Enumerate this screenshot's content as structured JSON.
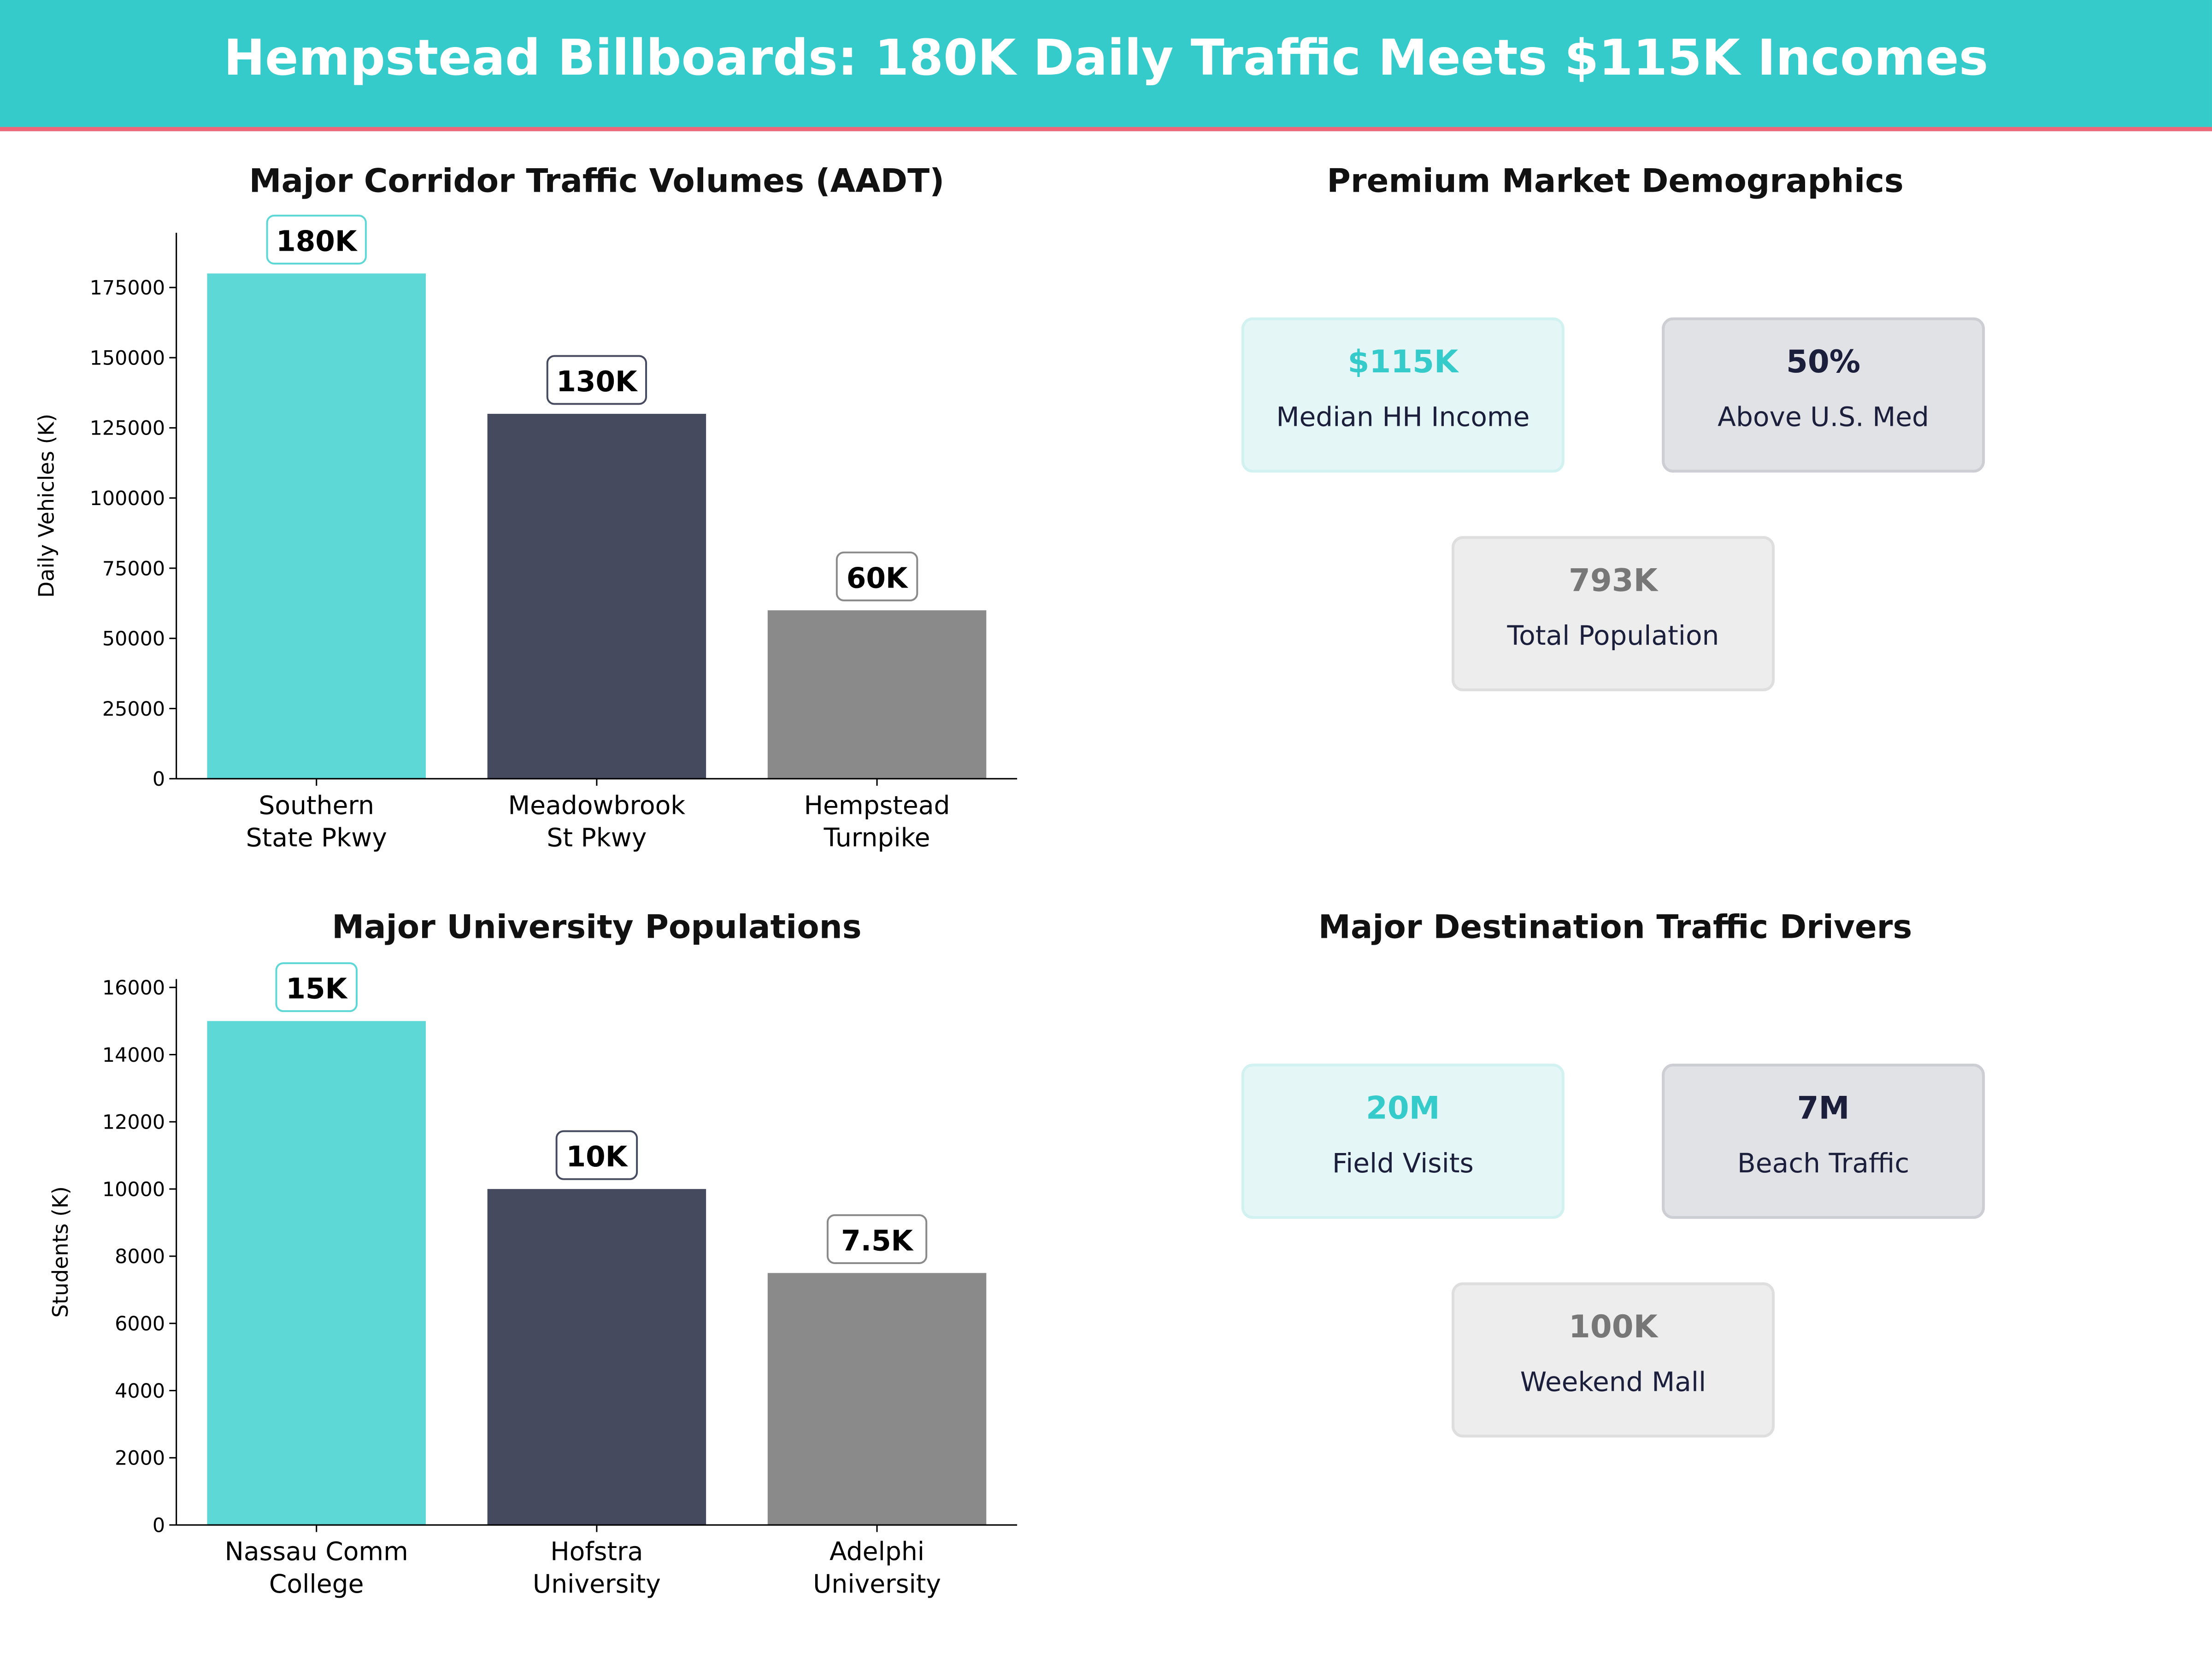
{
  "header": {
    "title": "Hempstead Billboards: 180K Daily Traffic Meets $115K Incomes"
  },
  "colors": {
    "teal": "#36CBCB",
    "bar_teal": "#5DD8D6",
    "navy": "#464A5F",
    "gray": "#8A8A8A",
    "accent_line": "#F06878"
  },
  "chart_data": [
    {
      "type": "bar",
      "title": "Major Corridor Traffic Volumes (AADT)",
      "xlabel": "",
      "ylabel": "Daily Vehicles (K)",
      "categories": [
        "Southern\nState Pkwy",
        "Meadowbrook\nSt Pkwy",
        "Hempstead\nTurnpike"
      ],
      "values": [
        180000,
        130000,
        60000
      ],
      "data_labels": [
        "180K",
        "130K",
        "60K"
      ],
      "bar_colors": [
        "#5DD8D6",
        "#464A5F",
        "#8A8A8A"
      ],
      "ylim": [
        0,
        194500
      ],
      "yticks": [
        0,
        25000,
        50000,
        75000,
        100000,
        125000,
        150000,
        175000
      ],
      "grid": false
    },
    {
      "type": "bar",
      "title": "Major University Populations",
      "xlabel": "",
      "ylabel": "Students (K)",
      "categories": [
        "Nassau Comm\nCollege",
        "Hofstra\nUniversity",
        "Adelphi\nUniversity"
      ],
      "values": [
        15000,
        10000,
        7500
      ],
      "data_labels": [
        "15K",
        "10K",
        "7.5K"
      ],
      "bar_colors": [
        "#5DD8D6",
        "#464A5F",
        "#8A8A8A"
      ],
      "ylim": [
        0,
        16250
      ],
      "yticks": [
        0,
        2000,
        4000,
        6000,
        8000,
        10000,
        12000,
        14000,
        16000
      ],
      "grid": false
    }
  ],
  "demographics": {
    "title": "Premium Market Demographics",
    "cards": [
      {
        "value": "$115K",
        "label": "Median HH Income"
      },
      {
        "value": "50%",
        "label": "Above U.S. Med"
      },
      {
        "value": "793K",
        "label": "Total Population"
      }
    ]
  },
  "destinations": {
    "title": "Major Destination Traffic Drivers",
    "cards": [
      {
        "value": "20M",
        "label": "Field Visits"
      },
      {
        "value": "7M",
        "label": "Beach Traffic"
      },
      {
        "value": "100K",
        "label": "Weekend Mall"
      }
    ]
  }
}
